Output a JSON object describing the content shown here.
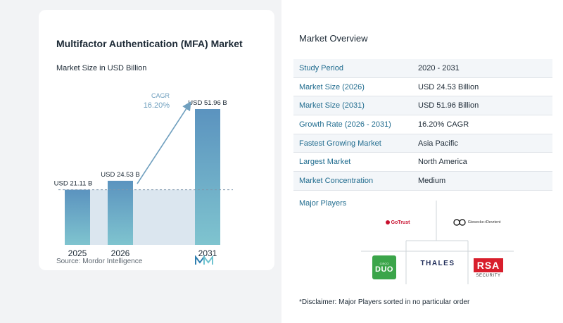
{
  "chart_data": {
    "type": "bar",
    "title": "Multifactor Authentication (MFA) Market",
    "subtitle": "Market Size in USD Billion",
    "categories": [
      "2025",
      "2026",
      "2031"
    ],
    "values": [
      21.11,
      24.53,
      51.96
    ],
    "value_labels": [
      "USD 21.11 B",
      "USD 24.53 B",
      "USD 51.96 B"
    ],
    "cagr_label": "CAGR",
    "cagr_value": "16.20%",
    "xlabel": "",
    "ylabel": "",
    "ylim": [
      0,
      51.96
    ],
    "grid": false,
    "colors": {
      "bar_top": "#5b93bf",
      "bar_bottom": "#7fc4cf",
      "shade": "#dbe6ef",
      "arrow": "#6f9fbe",
      "cagr": "#6f9fbe"
    }
  },
  "source": "Source:  Mordor Intelligence",
  "overview": {
    "title": "Market Overview",
    "rows": [
      {
        "label": "Study Period",
        "value": "2020 - 2031"
      },
      {
        "label": "Market Size (2026)",
        "value": "USD 24.53 Billion"
      },
      {
        "label": "Market Size (2031)",
        "value": "USD 51.96 Billion"
      },
      {
        "label": "Growth Rate (2026 - 2031)",
        "value": "16.20% CAGR"
      },
      {
        "label": "Fastest Growing Market",
        "value": "Asia Pacific"
      },
      {
        "label": "Largest Market",
        "value": "North America"
      },
      {
        "label": "Market Concentration",
        "value": "Medium"
      }
    ],
    "players_title": "Major Players",
    "players": {
      "gotrust": "GoTrust",
      "gd": "Giesecke+Devrient",
      "duo_small": "CISCO",
      "duo": "DUO",
      "thales": "THALES",
      "rsa": "RSA",
      "rsa_sub": "SECURITY"
    },
    "disclaimer": "*Disclaimer: Major Players sorted in no particular order"
  }
}
